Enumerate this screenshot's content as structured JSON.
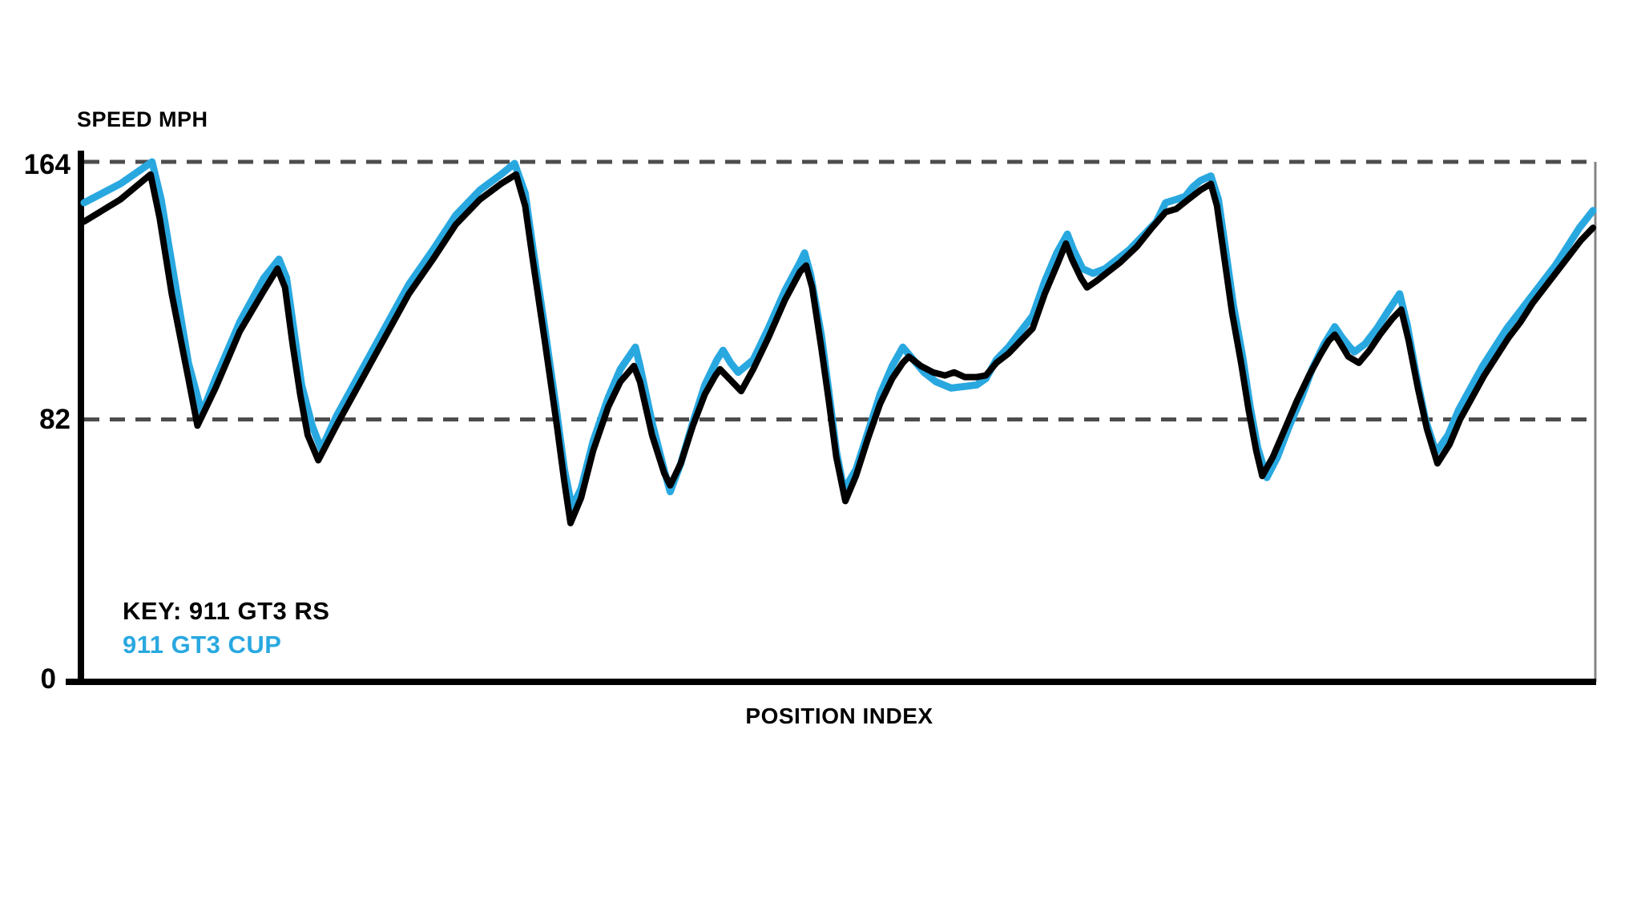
{
  "chart_data": {
    "type": "line",
    "title": "SPEED MPH",
    "xlabel": "POSITION INDEX",
    "ylabel": "SPEED MPH",
    "yticks": [
      164,
      82,
      0
    ],
    "ylim": [
      0,
      168
    ],
    "xlim": [
      0,
      1000
    ],
    "grid": "horizontal dashed gridlines at y=82 and y=164, grid color #4d4d4d",
    "legend_position": "inside plot, bottom-left",
    "series": [
      {
        "name": "911 GT3 CUP",
        "color": "#29a8e0",
        "points": [
          [
            0,
            151
          ],
          [
            24,
            157
          ],
          [
            45,
            164
          ],
          [
            51,
            152
          ],
          [
            60,
            126
          ],
          [
            69,
            100
          ],
          [
            78,
            84
          ],
          [
            87,
            95
          ],
          [
            103,
            113
          ],
          [
            119,
            127
          ],
          [
            129,
            133
          ],
          [
            134,
            127
          ],
          [
            139,
            110
          ],
          [
            144,
            93
          ],
          [
            151,
            80
          ],
          [
            157,
            72.5
          ],
          [
            167,
            83
          ],
          [
            183,
            97
          ],
          [
            199,
            111
          ],
          [
            215,
            125
          ],
          [
            231,
            136
          ],
          [
            246,
            147
          ],
          [
            262,
            155
          ],
          [
            276,
            160
          ],
          [
            285,
            163.5
          ],
          [
            292,
            154
          ],
          [
            297,
            137
          ],
          [
            305,
            111
          ],
          [
            313,
            84
          ],
          [
            318,
            66
          ],
          [
            323,
            54
          ],
          [
            329,
            60
          ],
          [
            337,
            75
          ],
          [
            347,
            89
          ],
          [
            355,
            98
          ],
          [
            365,
            105
          ],
          [
            368,
            99
          ],
          [
            376,
            81
          ],
          [
            384,
            66
          ],
          [
            388,
            59
          ],
          [
            395,
            68
          ],
          [
            403,
            81
          ],
          [
            411,
            93
          ],
          [
            419,
            101
          ],
          [
            423,
            104
          ],
          [
            428,
            100
          ],
          [
            433,
            97
          ],
          [
            443,
            101
          ],
          [
            453,
            111
          ],
          [
            464,
            123
          ],
          [
            474,
            132
          ],
          [
            477,
            135
          ],
          [
            481,
            128
          ],
          [
            488,
            109
          ],
          [
            493,
            91
          ],
          [
            498,
            72
          ],
          [
            503,
            59.5
          ],
          [
            511,
            66
          ],
          [
            519,
            78
          ],
          [
            527,
            90
          ],
          [
            535,
            99
          ],
          [
            542,
            105
          ],
          [
            549,
            101
          ],
          [
            556,
            97
          ],
          [
            564,
            94
          ],
          [
            574,
            92
          ],
          [
            583,
            92.5
          ],
          [
            591,
            93
          ],
          [
            597,
            95
          ],
          [
            604,
            101
          ],
          [
            612,
            105
          ],
          [
            620,
            110
          ],
          [
            628,
            115
          ],
          [
            636,
            126
          ],
          [
            644,
            135
          ],
          [
            651,
            141
          ],
          [
            655,
            136
          ],
          [
            661,
            130
          ],
          [
            668,
            128.5
          ],
          [
            676,
            130
          ],
          [
            684,
            133
          ],
          [
            692,
            136
          ],
          [
            702,
            141
          ],
          [
            710,
            145
          ],
          [
            716,
            151
          ],
          [
            723,
            152
          ],
          [
            729,
            153
          ],
          [
            734,
            156
          ],
          [
            739,
            158
          ],
          [
            746,
            159.5
          ],
          [
            751,
            152
          ],
          [
            756,
            135
          ],
          [
            761,
            118
          ],
          [
            767,
            102
          ],
          [
            772,
            86
          ],
          [
            777,
            73
          ],
          [
            783,
            63.5
          ],
          [
            790,
            70
          ],
          [
            798,
            80
          ],
          [
            806,
            89
          ],
          [
            813,
            98
          ],
          [
            821,
            106
          ],
          [
            828,
            111.5
          ],
          [
            833,
            108
          ],
          [
            838,
            105
          ],
          [
            841,
            103.5
          ],
          [
            848,
            106
          ],
          [
            856,
            111
          ],
          [
            864,
            117
          ],
          [
            871,
            122
          ],
          [
            876,
            112
          ],
          [
            882,
            96
          ],
          [
            888,
            82
          ],
          [
            895,
            71.5
          ],
          [
            903,
            77
          ],
          [
            910,
            85
          ],
          [
            918,
            92
          ],
          [
            926,
            99
          ],
          [
            934,
            105
          ],
          [
            942,
            111
          ],
          [
            950,
            116
          ],
          [
            958,
            121
          ],
          [
            966,
            126
          ],
          [
            974,
            131
          ],
          [
            982,
            137
          ],
          [
            990,
            143
          ],
          [
            999,
            148.5
          ]
        ]
      },
      {
        "name": "911 GT3 RS",
        "color": "#000000",
        "points": [
          [
            0,
            145
          ],
          [
            24,
            152
          ],
          [
            44,
            160
          ],
          [
            50,
            146
          ],
          [
            58,
            122
          ],
          [
            69,
            95
          ],
          [
            75,
            80
          ],
          [
            87,
            92
          ],
          [
            103,
            110
          ],
          [
            119,
            123
          ],
          [
            128,
            130
          ],
          [
            133,
            124
          ],
          [
            138,
            106
          ],
          [
            143,
            90
          ],
          [
            148,
            77
          ],
          [
            155,
            69
          ],
          [
            167,
            80
          ],
          [
            183,
            94
          ],
          [
            199,
            108
          ],
          [
            215,
            122
          ],
          [
            231,
            133
          ],
          [
            246,
            144
          ],
          [
            262,
            152
          ],
          [
            276,
            157
          ],
          [
            286,
            160
          ],
          [
            292,
            150
          ],
          [
            297,
            133
          ],
          [
            305,
            107
          ],
          [
            313,
            80
          ],
          [
            318,
            62
          ],
          [
            322,
            49
          ],
          [
            329,
            57
          ],
          [
            337,
            72
          ],
          [
            347,
            86
          ],
          [
            355,
            94
          ],
          [
            364,
            99
          ],
          [
            368,
            94
          ],
          [
            376,
            77
          ],
          [
            384,
            65
          ],
          [
            388,
            61
          ],
          [
            395,
            68
          ],
          [
            403,
            80
          ],
          [
            411,
            90
          ],
          [
            418,
            96
          ],
          [
            421,
            98
          ],
          [
            427,
            95
          ],
          [
            435,
            91
          ],
          [
            443,
            98
          ],
          [
            453,
            108
          ],
          [
            464,
            120
          ],
          [
            474,
            129
          ],
          [
            478,
            131
          ],
          [
            482,
            124
          ],
          [
            488,
            105
          ],
          [
            493,
            88
          ],
          [
            498,
            70
          ],
          [
            504,
            56
          ],
          [
            511,
            64
          ],
          [
            519,
            76
          ],
          [
            527,
            87
          ],
          [
            535,
            95
          ],
          [
            542,
            100
          ],
          [
            546,
            102
          ],
          [
            554,
            99
          ],
          [
            562,
            97
          ],
          [
            570,
            96
          ],
          [
            576,
            97
          ],
          [
            583,
            95.5
          ],
          [
            591,
            95.5
          ],
          [
            597,
            96
          ],
          [
            604,
            100
          ],
          [
            612,
            103
          ],
          [
            620,
            107
          ],
          [
            628,
            111
          ],
          [
            636,
            122
          ],
          [
            644,
            131
          ],
          [
            650,
            138
          ],
          [
            654,
            133
          ],
          [
            660,
            127
          ],
          [
            664,
            124
          ],
          [
            670,
            126
          ],
          [
            678,
            129
          ],
          [
            686,
            132
          ],
          [
            697,
            137
          ],
          [
            707,
            143
          ],
          [
            716,
            148
          ],
          [
            723,
            149
          ],
          [
            731,
            152
          ],
          [
            739,
            155
          ],
          [
            746,
            157
          ],
          [
            750,
            150
          ],
          [
            755,
            133
          ],
          [
            760,
            116
          ],
          [
            766,
            100
          ],
          [
            771,
            85
          ],
          [
            776,
            72
          ],
          [
            780,
            64
          ],
          [
            787,
            70
          ],
          [
            795,
            79
          ],
          [
            803,
            88
          ],
          [
            811,
            96
          ],
          [
            819,
            103
          ],
          [
            824,
            107
          ],
          [
            828,
            109
          ],
          [
            832,
            106
          ],
          [
            837,
            102
          ],
          [
            844,
            100
          ],
          [
            851,
            104
          ],
          [
            858,
            109
          ],
          [
            866,
            114
          ],
          [
            872,
            117
          ],
          [
            877,
            107
          ],
          [
            883,
            92
          ],
          [
            889,
            79
          ],
          [
            896,
            68
          ],
          [
            904,
            74
          ],
          [
            911,
            82
          ],
          [
            919,
            89
          ],
          [
            927,
            96
          ],
          [
            935,
            102
          ],
          [
            943,
            108
          ],
          [
            951,
            113
          ],
          [
            959,
            119
          ],
          [
            967,
            124
          ],
          [
            975,
            129
          ],
          [
            983,
            134
          ],
          [
            991,
            139
          ],
          [
            999,
            143
          ]
        ]
      }
    ]
  },
  "labels": {
    "title": "SPEED MPH",
    "xlabel": "POSITION INDEX",
    "ytick_164": "164",
    "ytick_82": "82",
    "ytick_0": "0",
    "legend_rs": "KEY: 911 GT3 RS",
    "legend_cup": "911 GT3 CUP"
  },
  "colors": {
    "gt3_rs_line": "#000000",
    "gt3_cup_line": "#29a8e0",
    "gridline": "#4d4d4d",
    "axis": "#000000",
    "right_border": "#848484",
    "background": "#ffffff"
  }
}
